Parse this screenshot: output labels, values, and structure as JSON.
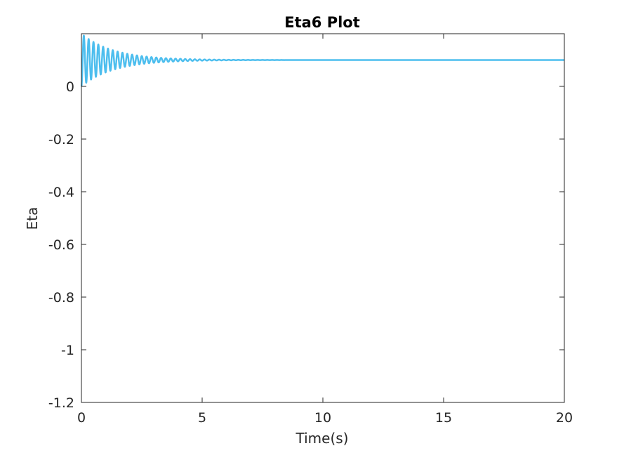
{
  "chart_data": {
    "type": "line",
    "title": "Eta6 Plot",
    "xlabel": "Time(s)",
    "ylabel": "Eta",
    "xlim": [
      0,
      20
    ],
    "ylim": [
      -1.2,
      0.2
    ],
    "x_ticks": [
      0,
      5,
      10,
      15,
      20
    ],
    "x_tick_labels": [
      "0",
      "5",
      "10",
      "15",
      "20"
    ],
    "y_ticks": [
      0,
      -0.2,
      -0.4,
      -0.6,
      -0.8,
      -1,
      -1.2
    ],
    "y_tick_labels": [
      "0",
      "-0.2",
      "-0.4",
      "-0.6",
      "-0.8",
      "-1",
      "-1.2"
    ],
    "grid": false,
    "box": true,
    "series": [
      {
        "color": "#4DBEEE",
        "line_width": 2.5,
        "model": "damped-oscillation",
        "x_start": 0,
        "x_end": 20,
        "initial_value": 0,
        "steady_state": 0.1,
        "initial_amplitude": 0.1,
        "decay_rate": 0.75,
        "period": 0.2
      }
    ]
  }
}
